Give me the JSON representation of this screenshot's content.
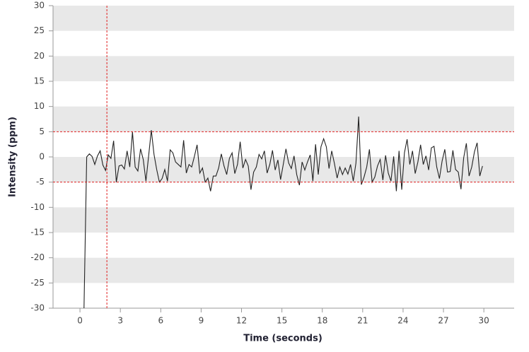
{
  "chart_data": {
    "type": "line",
    "xlabel": "Time (seconds)",
    "ylabel": "Intensity (ppm)",
    "x": [
      0.3,
      0.5,
      0.7,
      0.9,
      1.1,
      1.3,
      1.5,
      1.7,
      1.9,
      2.1,
      2.3,
      2.5,
      2.7,
      2.9,
      3.1,
      3.3,
      3.5,
      3.7,
      3.9,
      4.1,
      4.3,
      4.5,
      4.7,
      4.9,
      5.1,
      5.3,
      5.5,
      5.7,
      5.9,
      6.1,
      6.3,
      6.5,
      6.7,
      6.9,
      7.1,
      7.3,
      7.5,
      7.7,
      7.9,
      8.1,
      8.3,
      8.5,
      8.7,
      8.9,
      9.1,
      9.3,
      9.5,
      9.7,
      9.9,
      10.1,
      10.3,
      10.5,
      10.7,
      10.9,
      11.1,
      11.3,
      11.5,
      11.7,
      11.9,
      12.1,
      12.3,
      12.5,
      12.7,
      12.9,
      13.1,
      13.3,
      13.5,
      13.7,
      13.9,
      14.1,
      14.3,
      14.5,
      14.7,
      14.9,
      15.1,
      15.3,
      15.5,
      15.7,
      15.9,
      16.1,
      16.3,
      16.5,
      16.7,
      16.9,
      17.1,
      17.3,
      17.5,
      17.7,
      17.9,
      18.1,
      18.3,
      18.5,
      18.7,
      18.9,
      19.1,
      19.3,
      19.5,
      19.7,
      19.9,
      20.1,
      20.3,
      20.5,
      20.7,
      20.9,
      21.1,
      21.3,
      21.5,
      21.7,
      21.9,
      22.1,
      22.3,
      22.5,
      22.7,
      22.9,
      23.1,
      23.3,
      23.5,
      23.7,
      23.9,
      24.1,
      24.3,
      24.5,
      24.7,
      24.9,
      25.1,
      25.3,
      25.5,
      25.7,
      25.9,
      26.1,
      26.3,
      26.5,
      26.7,
      26.9,
      27.1,
      27.3,
      27.5,
      27.7,
      27.9,
      28.1,
      28.3,
      28.5,
      28.7,
      28.9,
      29.1,
      29.3,
      29.5,
      29.7,
      29.9
    ],
    "values": [
      -30,
      0,
      0.6,
      0.1,
      -1.5,
      0.2,
      1.2,
      -1.6,
      -2.7,
      0.4,
      -0.3,
      3.2,
      -5.0,
      -1.8,
      -1.6,
      -2.4,
      1.2,
      -2.0,
      5.0,
      -2.0,
      -2.8,
      1.6,
      -0.5,
      -4.8,
      0.2,
      5.3,
      0.5,
      -2.5,
      -5.0,
      -4.3,
      -2.5,
      -4.8,
      1.4,
      0.8,
      -1.0,
      -1.5,
      -2.0,
      3.3,
      -3.2,
      -1.5,
      -2.0,
      0.1,
      2.4,
      -3.2,
      -2.2,
      -5.0,
      -4.2,
      -6.8,
      -3.8,
      -3.8,
      -2.2,
      0.6,
      -1.8,
      -3.5,
      -0.3,
      0.8,
      -3.3,
      -1.5,
      3.0,
      -2.2,
      -0.5,
      -1.8,
      -6.5,
      -3.0,
      -2.0,
      0.5,
      -0.4,
      1.2,
      -3.2,
      -1.5,
      1.3,
      -2.6,
      -0.6,
      -4.5,
      -1.5,
      1.6,
      -1.2,
      -2.3,
      0.2,
      -3.5,
      -5.6,
      -1.0,
      -2.6,
      -1.0,
      0.4,
      -4.8,
      2.5,
      -3.5,
      2.0,
      3.6,
      2.0,
      -2.3,
      1.2,
      -1.3,
      -4.2,
      -2.0,
      -3.5,
      -2.2,
      -3.4,
      -1.5,
      -4.8,
      -1.2,
      8.0,
      -5.5,
      -4.0,
      -2.0,
      1.5,
      -5.0,
      -4.0,
      -1.8,
      -0.5,
      -4.6,
      0.3,
      -3.2,
      -4.8,
      0.1,
      -6.8,
      1.2,
      -6.5,
      0.8,
      3.5,
      -1.5,
      1.2,
      -3.3,
      -1.0,
      2.4,
      -1.5,
      0.2,
      -2.6,
      1.8,
      2.1,
      -2.0,
      -4.3,
      -0.8,
      1.5,
      -3.0,
      -2.9,
      1.3,
      -2.5,
      -3.0,
      -6.4,
      -0.2,
      2.7,
      -3.8,
      -2.0,
      1.0,
      2.8,
      -3.8,
      -1.8
    ],
    "color": "#222222",
    "xlim": [
      -2,
      32.25
    ],
    "xticks": [
      0,
      3,
      6,
      9,
      12,
      15,
      18,
      21,
      24,
      27,
      30
    ],
    "ylim": [
      -30,
      30
    ],
    "yticks": [
      -30,
      -25,
      -20,
      -15,
      -10,
      -5,
      0,
      5,
      10,
      15,
      20,
      25,
      30
    ],
    "bands": true,
    "reference_lines": {
      "x": [
        2
      ],
      "y": [
        5,
        -5
      ],
      "color": "#e02020"
    }
  }
}
